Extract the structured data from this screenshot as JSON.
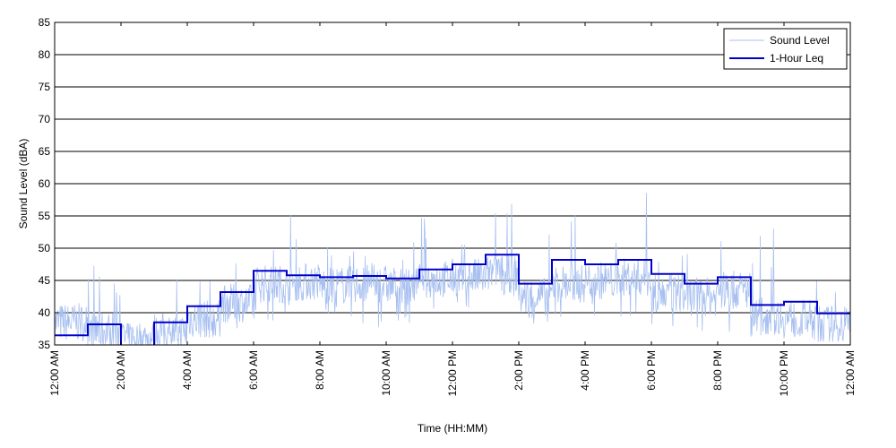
{
  "chart_data": {
    "type": "line",
    "title": "",
    "xlabel": "Time (HH:MM)",
    "ylabel": "Sound Level (dBA)",
    "xlim_hours": [
      0,
      24
    ],
    "ylim": [
      35,
      85
    ],
    "y_ticks": [
      35,
      40,
      45,
      50,
      55,
      60,
      65,
      70,
      75,
      80,
      85
    ],
    "x_ticks": [
      {
        "hour": 0,
        "label": "12:00 AM"
      },
      {
        "hour": 2,
        "label": "2:00 AM"
      },
      {
        "hour": 4,
        "label": "4:00 AM"
      },
      {
        "hour": 6,
        "label": "6:00 AM"
      },
      {
        "hour": 8,
        "label": "8:00 AM"
      },
      {
        "hour": 10,
        "label": "10:00 AM"
      },
      {
        "hour": 12,
        "label": "12:00 PM"
      },
      {
        "hour": 14,
        "label": "2:00 PM"
      },
      {
        "hour": 16,
        "label": "4:00 PM"
      },
      {
        "hour": 18,
        "label": "6:00 PM"
      },
      {
        "hour": 20,
        "label": "8:00 PM"
      },
      {
        "hour": 22,
        "label": "10:00 PM"
      },
      {
        "hour": 24,
        "label": "12:00 AM"
      }
    ],
    "grid": "horizontal",
    "legend_position": "top-right",
    "series": [
      {
        "name": "Sound Level",
        "color": "#a8c0f0",
        "style": "thin-line",
        "hourly_baseline": [
          38.5,
          37.2,
          36.0,
          37.0,
          39.0,
          41.5,
          44.5,
          44.8,
          44.3,
          44.5,
          44.2,
          45.2,
          45.5,
          46.0,
          42.5,
          44.5,
          45.0,
          45.5,
          43.0,
          42.5,
          43.5,
          39.5,
          39.0,
          38.2
        ],
        "hourly_peaks": [
          50.2,
          47.5,
          38.3,
          46.5,
          48.0,
          49.5,
          53.5,
          55.8,
          51.5,
          50.5,
          51.0,
          55.5,
          51.0,
          57.0,
          52.5,
          57.3,
          53.0,
          61.0,
          51.0,
          54.5,
          55.0,
          53.5,
          47.5,
          44.0
        ],
        "hourly_troughs": [
          35.0,
          35.0,
          35.0,
          35.0,
          36.0,
          36.5,
          38.5,
          40.0,
          39.0,
          37.5,
          38.0,
          39.5,
          40.0,
          41.0,
          38.0,
          39.0,
          39.5,
          39.0,
          37.0,
          36.0,
          36.5,
          35.5,
          35.0,
          35.5
        ]
      },
      {
        "name": "1-Hour Leq",
        "color": "#0000cc",
        "style": "step",
        "x_hours": [
          0,
          1,
          2,
          3,
          4,
          5,
          6,
          7,
          8,
          9,
          10,
          11,
          12,
          13,
          14,
          15,
          16,
          17,
          18,
          19,
          20,
          21,
          22,
          23
        ],
        "values": [
          36.5,
          38.2,
          33.0,
          38.5,
          41.0,
          43.2,
          46.5,
          45.8,
          45.5,
          45.7,
          45.3,
          46.7,
          47.5,
          49.0,
          44.5,
          48.2,
          47.5,
          48.2,
          46.0,
          44.5,
          45.5,
          41.2,
          41.7,
          39.9
        ]
      }
    ]
  }
}
